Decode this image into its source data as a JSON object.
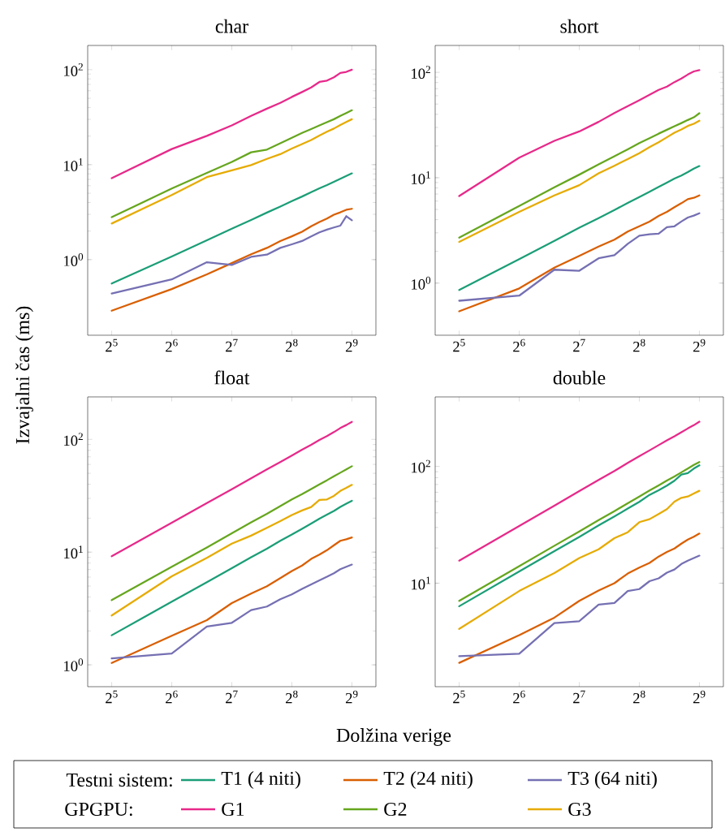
{
  "chart_data": [
    {
      "type": "line",
      "title": "char",
      "ylabel": "Izvajalni čas (ms)",
      "log": "xy",
      "legend": "bottom",
      "annotations": [
        "Testni sistem:",
        "GPGPU:"
      ],
      "x": [
        32,
        64,
        96,
        128,
        160,
        192,
        224,
        256,
        288,
        320,
        352,
        384,
        416,
        448,
        480,
        512
      ],
      "xlim": [
        24.25,
        675.6
      ],
      "ylim": [
        0.16,
        180
      ],
      "xticks": [
        {
          "value": 32,
          "label": "2$^{5}$"
        },
        {
          "value": 64,
          "label": "2$^{6}$"
        },
        {
          "value": 128,
          "label": "2$^{7}$"
        },
        {
          "value": 256,
          "label": "2$^{8}$"
        },
        {
          "value": 512,
          "label": "2$^{9}$"
        }
      ],
      "yticks": [
        {
          "value": 1,
          "label": "10$^{0}$"
        },
        {
          "value": 10,
          "label": "10$^{1}$"
        },
        {
          "value": 100,
          "label": "10$^{2}$"
        }
      ],
      "series": [
        {
          "name": "T1 (4 niti)",
          "color": "#1b9e77",
          "values": [
            0.56,
            1.08,
            1.6,
            2.12,
            2.62,
            3.13,
            3.62,
            4.13,
            4.62,
            5.14,
            5.63,
            6.1,
            6.6,
            7.1,
            7.6,
            8.1
          ]
        },
        {
          "name": "T2 (24 niti)",
          "color": "#d95f02",
          "values": [
            0.29,
            0.49,
            0.7,
            0.92,
            1.14,
            1.33,
            1.57,
            1.76,
            1.97,
            2.25,
            2.49,
            2.71,
            2.97,
            3.15,
            3.35,
            3.43
          ]
        },
        {
          "name": "T3 (64 niti)",
          "color": "#7570b3",
          "values": [
            0.44,
            0.62,
            0.94,
            0.88,
            1.07,
            1.13,
            1.33,
            1.45,
            1.57,
            1.76,
            1.94,
            2.07,
            2.18,
            2.28,
            2.87,
            2.6
          ]
        },
        {
          "name": "G1",
          "color": "#e7298a",
          "values": [
            7.2,
            14.6,
            20.1,
            25.9,
            32.6,
            38.9,
            44.7,
            51.7,
            58.2,
            65.1,
            74.3,
            76.8,
            83.2,
            92.4,
            94.9,
            100
          ]
        },
        {
          "name": "G2",
          "color": "#66a61e",
          "values": [
            2.8,
            5.6,
            8.2,
            10.7,
            13.5,
            14.4,
            16.8,
            19.2,
            21.6,
            23.7,
            25.9,
            28,
            30.1,
            32.6,
            35,
            37.4
          ]
        },
        {
          "name": "G3",
          "color": "#e6ab02",
          "values": [
            2.4,
            4.8,
            7.4,
            8.7,
            9.9,
            11.5,
            12.9,
            14.8,
            16.5,
            18.2,
            20.3,
            22.2,
            24,
            26.2,
            28.2,
            30.1
          ]
        }
      ]
    },
    {
      "type": "line",
      "title": "short",
      "log": "xy",
      "x": [
        32,
        64,
        96,
        128,
        160,
        192,
        224,
        256,
        288,
        320,
        352,
        384,
        416,
        448,
        480,
        512
      ],
      "xlim": [
        24.25,
        675.6
      ],
      "ylim": [
        0.32,
        180
      ],
      "xticks": [
        {
          "value": 32,
          "label": "2$^{5}$"
        },
        {
          "value": 64,
          "label": "2$^{6}$"
        },
        {
          "value": 128,
          "label": "2$^{7}$"
        },
        {
          "value": 256,
          "label": "2$^{8}$"
        },
        {
          "value": 512,
          "label": "2$^{9}$"
        }
      ],
      "yticks": [
        {
          "value": 1,
          "label": "10$^{0}$"
        },
        {
          "value": 10,
          "label": "10$^{1}$"
        },
        {
          "value": 100,
          "label": "10$^{2}$"
        }
      ],
      "series": [
        {
          "color": "#1b9e77",
          "values": [
            0.86,
            1.69,
            2.52,
            3.35,
            4.14,
            4.94,
            5.77,
            6.56,
            7.35,
            8.18,
            9,
            9.8,
            10.5,
            11.3,
            12.2,
            12.9
          ]
        },
        {
          "color": "#d95f02",
          "values": [
            0.54,
            0.89,
            1.4,
            1.81,
            2.22,
            2.58,
            3.08,
            3.46,
            3.84,
            4.34,
            4.75,
            5.25,
            5.73,
            6.26,
            6.45,
            6.8
          ]
        },
        {
          "color": "#7570b3",
          "values": [
            0.68,
            0.76,
            1.34,
            1.31,
            1.72,
            1.84,
            2.36,
            2.82,
            2.9,
            2.94,
            3.4,
            3.46,
            3.84,
            4.19,
            4.37,
            4.6
          ]
        },
        {
          "color": "#e7298a",
          "values": [
            6.7,
            15.5,
            22.4,
            27.5,
            33.9,
            41.1,
            47.7,
            54.3,
            61.2,
            68.1,
            73.1,
            80.8,
            87.3,
            95.3,
            102,
            105
          ]
        },
        {
          "color": "#66a61e",
          "values": [
            2.7,
            5.4,
            8.1,
            10.7,
            13.4,
            16,
            18.6,
            21.3,
            23.7,
            26.2,
            28.5,
            30.8,
            33,
            35.3,
            37.4,
            40.9
          ]
        },
        {
          "color": "#e6ab02",
          "values": [
            2.46,
            4.74,
            6.8,
            8.5,
            11,
            13,
            15,
            17.1,
            19.5,
            21.7,
            24.2,
            26.7,
            28.7,
            31,
            32.5,
            34.7
          ]
        }
      ]
    },
    {
      "type": "line",
      "title": "float",
      "xlabel": "Dolžina verige",
      "log": "xy",
      "x": [
        32,
        64,
        96,
        128,
        160,
        192,
        224,
        256,
        288,
        320,
        352,
        384,
        416,
        448,
        480,
        512
      ],
      "xlim": [
        24.25,
        675.6
      ],
      "ylim": [
        0.64,
        238
      ],
      "xticks": [
        {
          "value": 32,
          "label": "2$^{5}$"
        },
        {
          "value": 64,
          "label": "2$^{6}$"
        },
        {
          "value": 128,
          "label": "2$^{7}$"
        },
        {
          "value": 256,
          "label": "2$^{8}$"
        },
        {
          "value": 512,
          "label": "2$^{9}$"
        }
      ],
      "yticks": [
        {
          "value": 1,
          "label": "10$^{0}$"
        },
        {
          "value": 10,
          "label": "10$^{1}$"
        },
        {
          "value": 100,
          "label": "10$^{2}$"
        }
      ],
      "series": [
        {
          "color": "#1b9e77",
          "values": [
            1.83,
            3.63,
            5.4,
            7.2,
            9,
            10.7,
            12.6,
            14.3,
            16.1,
            17.9,
            19.8,
            21.5,
            23.2,
            25.2,
            26.9,
            28.5
          ]
        },
        {
          "color": "#d95f02",
          "values": [
            1.04,
            1.81,
            2.49,
            3.53,
            4.29,
            4.98,
            5.88,
            6.8,
            7.6,
            8.7,
            9.5,
            10.4,
            11.5,
            12.6,
            13,
            13.5
          ]
        },
        {
          "color": "#7570b3",
          "values": [
            1.14,
            1.26,
            2.19,
            2.36,
            3.06,
            3.29,
            3.82,
            4.22,
            4.71,
            5.17,
            5.62,
            6.04,
            6.5,
            7.06,
            7.42,
            7.75
          ]
        },
        {
          "color": "#e7298a",
          "values": [
            9.2,
            18.2,
            27.2,
            36.1,
            45.1,
            54.1,
            62.8,
            71.8,
            81.1,
            89.5,
            98.9,
            107,
            116,
            126,
            134,
            143
          ]
        },
        {
          "color": "#66a61e",
          "values": [
            3.75,
            7.4,
            11,
            14.7,
            18.4,
            21.9,
            25.6,
            29.3,
            32.7,
            36.3,
            39.9,
            43.4,
            47.1,
            50.6,
            54.1,
            57.8
          ]
        },
        {
          "color": "#e6ab02",
          "values": [
            2.74,
            6.1,
            8.9,
            11.9,
            14,
            16.4,
            18.8,
            21.3,
            23.4,
            25.1,
            29,
            29.3,
            31.5,
            34.9,
            37.1,
            39.5
          ]
        }
      ]
    },
    {
      "type": "line",
      "title": "double",
      "log": "xy",
      "x": [
        32,
        64,
        96,
        128,
        160,
        192,
        224,
        256,
        288,
        320,
        352,
        384,
        416,
        448,
        480,
        512
      ],
      "xlim": [
        24.25,
        675.6
      ],
      "ylim": [
        1.3,
        393
      ],
      "xticks": [
        {
          "value": 32,
          "label": "2$^{5}$"
        },
        {
          "value": 64,
          "label": "2$^{6}$"
        },
        {
          "value": 128,
          "label": "2$^{7}$"
        },
        {
          "value": 256,
          "label": "2$^{8}$"
        },
        {
          "value": 512,
          "label": "2$^{9}$"
        }
      ],
      "yticks": [
        {
          "value": 10,
          "label": "10$^{1}$"
        },
        {
          "value": 100,
          "label": "10$^{2}$"
        }
      ],
      "series": [
        {
          "color": "#1b9e77",
          "values": [
            6.35,
            12.6,
            18.8,
            24.9,
            31.2,
            37.2,
            43.5,
            49.7,
            57,
            62.5,
            68.4,
            75.3,
            85.2,
            87.5,
            95.7,
            102
          ]
        },
        {
          "color": "#d95f02",
          "values": [
            2.08,
            3.59,
            5.07,
            7.06,
            8.65,
            10,
            12.1,
            13.6,
            14.9,
            16.9,
            18.5,
            19.8,
            21.8,
            23.6,
            25,
            26.6
          ]
        },
        {
          "color": "#7570b3",
          "values": [
            2.37,
            2.49,
            4.56,
            4.73,
            6.56,
            6.77,
            8.57,
            8.9,
            10.4,
            11,
            12.3,
            13.1,
            14.6,
            15.6,
            16.4,
            17.2
          ]
        },
        {
          "color": "#e7298a",
          "values": [
            15.6,
            30.9,
            46.1,
            61.5,
            76.6,
            91.3,
            107,
            122,
            137,
            152,
            167,
            181,
            196,
            211,
            225,
            241
          ]
        },
        {
          "color": "#66a61e",
          "values": [
            7.06,
            14,
            20.9,
            27.7,
            34.7,
            41.4,
            48.3,
            55.2,
            62.2,
            68.8,
            75.7,
            82,
            88.9,
            95.8,
            103,
            109
          ]
        },
        {
          "color": "#e6ab02",
          "values": [
            4.06,
            8.57,
            12.2,
            16.4,
            19.5,
            24.3,
            27.3,
            33.3,
            35.3,
            39.1,
            43,
            49.9,
            53.8,
            55.2,
            58.6,
            61.8
          ]
        }
      ]
    }
  ]
}
